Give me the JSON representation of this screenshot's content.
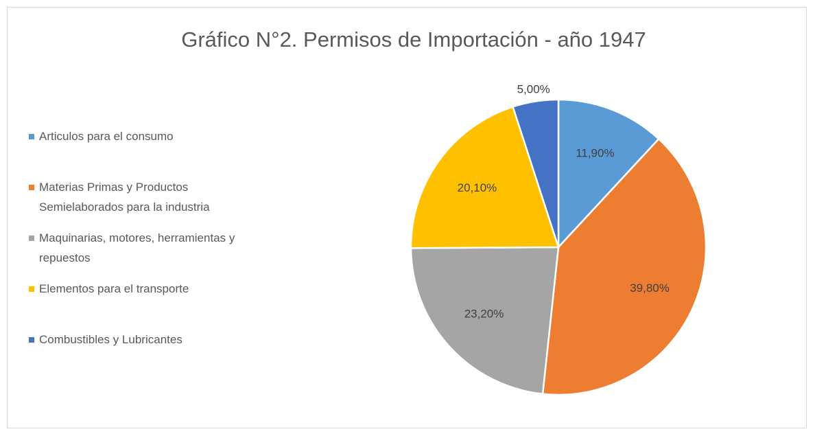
{
  "chart_data": {
    "type": "pie",
    "title": "Gráfico N°2. Permisos de Importación - año 1947",
    "categories": [
      "Articulos para el consumo",
      "Materias Primas y Productos Semielaborados para la industria",
      "Maquinarias, motores, herramientas y repuestos",
      "Elementos para el transporte",
      "Combustibles y Lubricantes"
    ],
    "values": [
      11.9,
      39.8,
      23.2,
      20.1,
      5.0
    ],
    "value_labels": [
      "11,90%",
      "39,80%",
      "23,20%",
      "20,10%",
      "5,00%"
    ],
    "colors": [
      "#5b9bd5",
      "#ed7d31",
      "#a5a5a5",
      "#ffc000",
      "#4472c4"
    ],
    "legend": "left"
  }
}
